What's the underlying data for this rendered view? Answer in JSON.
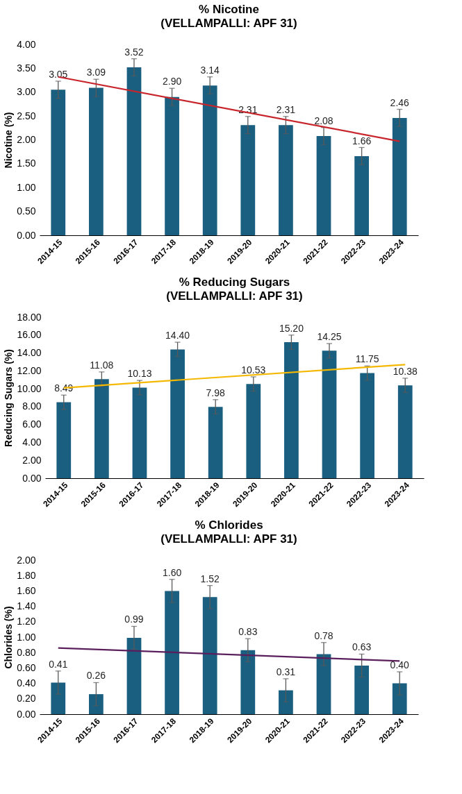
{
  "chart_data": [
    {
      "type": "bar",
      "title": "% Nicotine",
      "subtitle": "(VELLAMPALLI: APF 31)",
      "ylabel": "Nicotine (%)",
      "categories": [
        "2014-15",
        "2015-16",
        "2016-17",
        "2017-18",
        "2018-19",
        "2019-20",
        "2020-21",
        "2021-22",
        "2022-23",
        "2023-24"
      ],
      "ylim": [
        0,
        4
      ],
      "yticks": [
        {
          "value": 0,
          "label": "0.00"
        },
        {
          "value": 0.5,
          "label": "0.50"
        },
        {
          "value": 1,
          "label": "1.00"
        },
        {
          "value": 1.5,
          "label": "1.50"
        },
        {
          "value": 2,
          "label": "2.00"
        },
        {
          "value": 2.5,
          "label": "2.50"
        },
        {
          "value": 3,
          "label": "3.00"
        },
        {
          "value": 3.5,
          "label": "3.50"
        },
        {
          "value": 4,
          "label": "4.00"
        }
      ],
      "series": [
        {
          "color": "#1a5f80",
          "values": [
            3.05,
            3.09,
            3.52,
            2.9,
            3.14,
            2.31,
            2.31,
            2.08,
            1.66,
            2.46
          ],
          "errors": [
            0.18,
            0.18,
            0.18,
            0.18,
            0.18,
            0.18,
            0.18,
            0.18,
            0.18,
            0.18
          ],
          "value_labels": [
            "3.05",
            "3.09",
            "3.52",
            "2.90",
            "3.14",
            "2.31",
            "2.31",
            "2.08",
            "1.66",
            "2.46"
          ]
        },
        {
          "type": "line",
          "color": "#c8242b",
          "x": [
            "2014-15",
            "2023-24"
          ],
          "values": [
            3.32,
            1.97
          ]
        }
      ]
    },
    {
      "type": "bar",
      "title": "% Reducing Sugars",
      "subtitle": "(VELLAMPALLI: APF 31)",
      "ylabel": "Reducing Sugars (%)",
      "categories": [
        "2014-15",
        "2015-16",
        "2016-17",
        "2017-18",
        "2018-19",
        "2019-20",
        "2020-21",
        "2021-22",
        "2022-23",
        "2023-24"
      ],
      "ylim": [
        0,
        18
      ],
      "yticks": [
        {
          "value": 0,
          "label": "0.00"
        },
        {
          "value": 2,
          "label": "2.00"
        },
        {
          "value": 4,
          "label": "4.00"
        },
        {
          "value": 6,
          "label": "6.00"
        },
        {
          "value": 8,
          "label": "8.00"
        },
        {
          "value": 10,
          "label": "10.00"
        },
        {
          "value": 12,
          "label": "12.00"
        },
        {
          "value": 14,
          "label": "14.00"
        },
        {
          "value": 16,
          "label": "16.00"
        },
        {
          "value": 18,
          "label": "18.00"
        }
      ],
      "series": [
        {
          "color": "#1a5f80",
          "values": [
            8.49,
            11.08,
            10.13,
            14.4,
            7.98,
            10.53,
            15.2,
            14.25,
            11.75,
            10.38
          ],
          "errors": [
            0.8,
            0.8,
            0.8,
            0.8,
            0.8,
            0.8,
            0.8,
            0.8,
            0.8,
            0.8
          ],
          "value_labels": [
            "8.49",
            "11.08",
            "10.13",
            "14.40",
            "7.98",
            "10.53",
            "15.20",
            "14.25",
            "11.75",
            "10.38"
          ]
        },
        {
          "type": "line",
          "color": "#f5b800",
          "x": [
            "2014-15",
            "2023-24"
          ],
          "values": [
            10.1,
            12.7
          ]
        }
      ]
    },
    {
      "type": "bar",
      "title": "% Chlorides",
      "subtitle": "(VELLAMPALLI: APF 31)",
      "ylabel": "Chlorides (%)",
      "categories": [
        "2014-15",
        "2015-16",
        "2016-17",
        "2017-18",
        "2018-19",
        "2019-20",
        "2020-21",
        "2021-22",
        "2022-23",
        "2023-24"
      ],
      "ylim": [
        0,
        2
      ],
      "yticks": [
        {
          "value": 0,
          "label": "0.00"
        },
        {
          "value": 0.2,
          "label": "0.20"
        },
        {
          "value": 0.4,
          "label": "0.40"
        },
        {
          "value": 0.6,
          "label": "0.60"
        },
        {
          "value": 0.8,
          "label": "0.80"
        },
        {
          "value": 1,
          "label": "1.00"
        },
        {
          "value": 1.2,
          "label": "1.20"
        },
        {
          "value": 1.4,
          "label": "1.40"
        },
        {
          "value": 1.6,
          "label": "1.60"
        },
        {
          "value": 1.8,
          "label": "1.80"
        },
        {
          "value": 2,
          "label": "2.00"
        }
      ],
      "series": [
        {
          "color": "#1a5f80",
          "values": [
            0.41,
            0.26,
            0.99,
            1.6,
            1.52,
            0.83,
            0.31,
            0.78,
            0.63,
            0.4
          ],
          "errors": [
            0.15,
            0.15,
            0.15,
            0.15,
            0.15,
            0.15,
            0.15,
            0.15,
            0.15,
            0.15
          ],
          "value_labels": [
            "0.41",
            "0.26",
            "0.99",
            "1.60",
            "1.52",
            "0.83",
            "0.31",
            "0.78",
            "0.63",
            "0.40"
          ]
        },
        {
          "type": "line",
          "color": "#5a1e5c",
          "x": [
            "2014-15",
            "2023-24"
          ],
          "values": [
            0.86,
            0.69
          ]
        }
      ]
    }
  ]
}
